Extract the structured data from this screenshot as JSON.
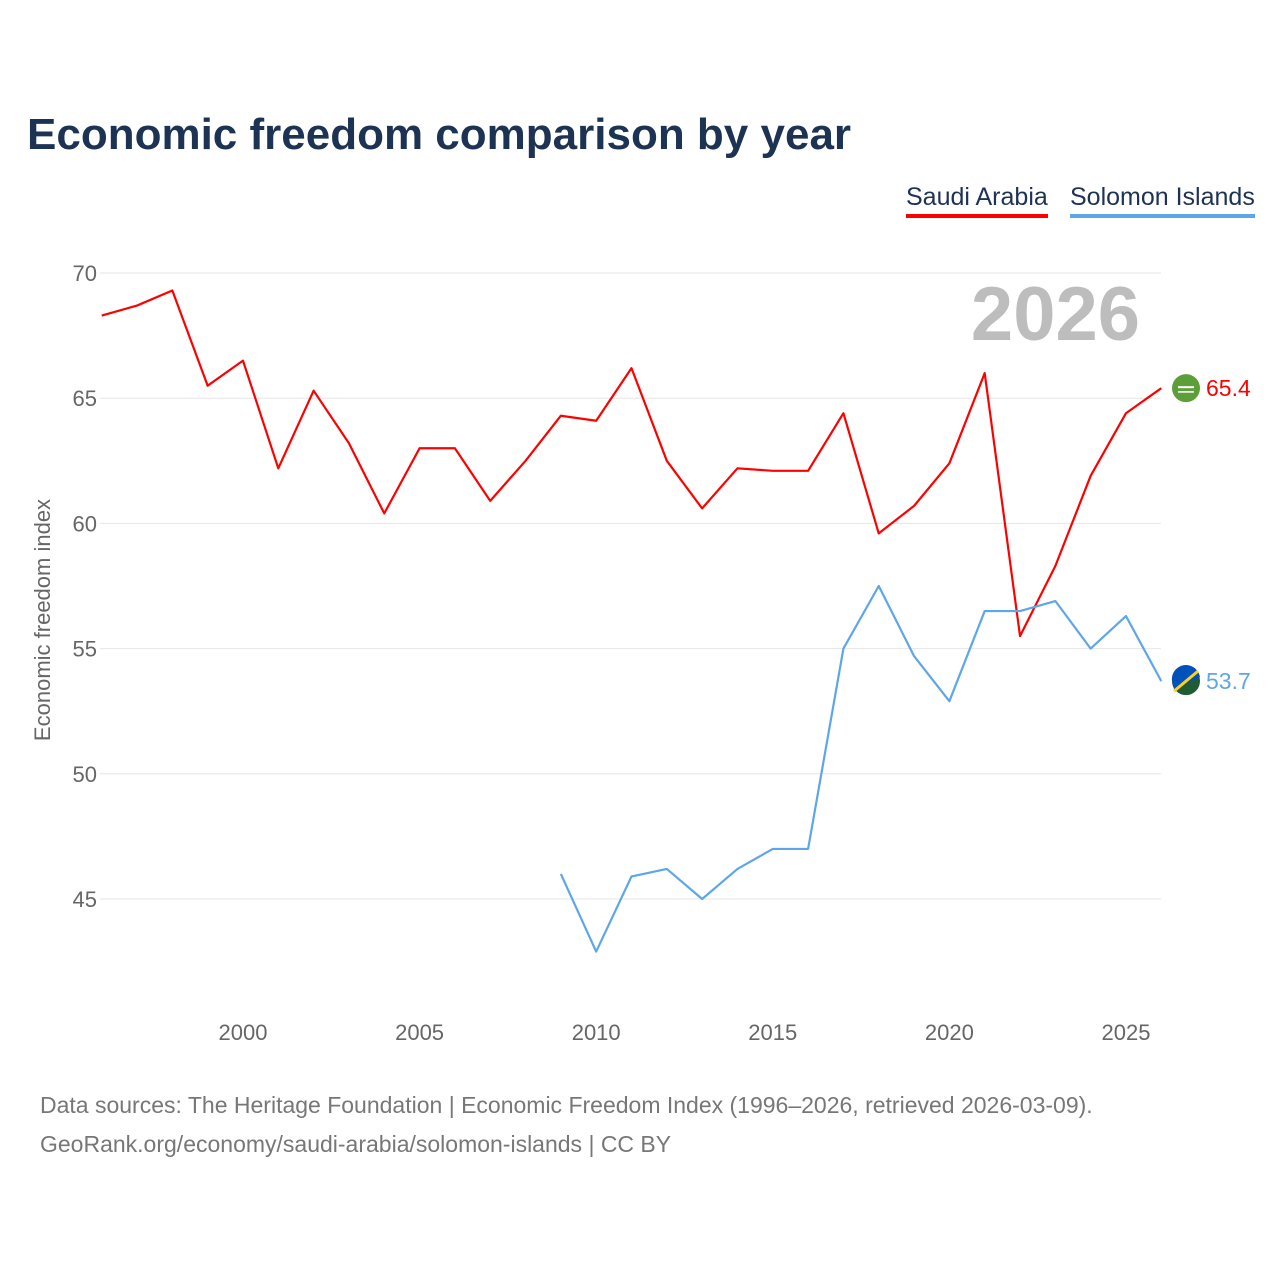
{
  "chart_data": {
    "type": "line",
    "title": "Economic freedom comparison by year",
    "ylabel": "Economic freedom index",
    "xlabel": "",
    "ylim": [
      42,
      70
    ],
    "xlim": [
      1996,
      2026
    ],
    "yticks": [
      45,
      50,
      55,
      60,
      65,
      70
    ],
    "xticks": [
      2000,
      2005,
      2010,
      2015,
      2020,
      2025
    ],
    "grid": true,
    "legend_placement": "top-right",
    "year_watermark": "2026",
    "series": [
      {
        "name": "Saudi Arabia",
        "color": "#ff0000",
        "end_label": "65.4",
        "flag": "saudi-arabia-flag",
        "x": [
          1996,
          1997,
          1998,
          1999,
          2000,
          2001,
          2002,
          2003,
          2004,
          2005,
          2006,
          2007,
          2008,
          2009,
          2010,
          2011,
          2012,
          2013,
          2014,
          2015,
          2016,
          2017,
          2018,
          2019,
          2020,
          2021,
          2022,
          2023,
          2024,
          2025,
          2026
        ],
        "values": [
          68.3,
          68.7,
          69.3,
          65.5,
          66.5,
          62.2,
          65.3,
          63.2,
          60.4,
          63.0,
          63.0,
          60.9,
          62.5,
          64.3,
          64.1,
          66.2,
          62.5,
          60.6,
          62.2,
          62.1,
          62.1,
          64.4,
          59.6,
          60.7,
          62.4,
          66.0,
          55.5,
          58.3,
          61.9,
          64.4,
          65.4
        ]
      },
      {
        "name": "Solomon Islands",
        "color": "#5ea6ea",
        "end_label": "53.7",
        "flag": "solomon-islands-flag",
        "x": [
          2009,
          2010,
          2011,
          2012,
          2013,
          2014,
          2015,
          2016,
          2017,
          2018,
          2019,
          2020,
          2021,
          2022,
          2023,
          2024,
          2025,
          2026
        ],
        "values": [
          46.0,
          42.9,
          45.9,
          46.2,
          45.0,
          46.2,
          47.0,
          47.0,
          55.0,
          57.5,
          54.7,
          52.9,
          56.5,
          56.5,
          56.9,
          55.0,
          56.3,
          53.7
        ]
      }
    ]
  },
  "footer": {
    "line1": "Data sources: The Heritage Foundation | Economic Freedom Index (1996–2026, retrieved 2026-03-09).",
    "line2": "GeoRank.org/economy/saudi-arabia/solomon-islands | CC BY"
  }
}
